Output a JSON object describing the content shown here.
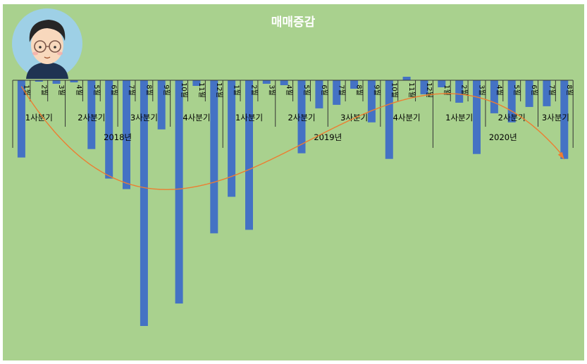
{
  "title": "매매증감",
  "colors": {
    "background": "#a9d18e",
    "bar": "#4472c4",
    "trendline": "#ed7d31",
    "axis": "#333333",
    "title": "#ffffff"
  },
  "avatar_icon": "avatar-icon",
  "chart_data": {
    "type": "bar",
    "title": "매매증감",
    "x": {
      "months": [
        "1월",
        "2월",
        "3월",
        "4월",
        "5월",
        "6월",
        "7월",
        "8월",
        "9월",
        "10월",
        "11월",
        "12월",
        "1월",
        "2월",
        "3월",
        "4월",
        "5월",
        "6월",
        "7월",
        "8월",
        "9월",
        "10월",
        "11월",
        "12월",
        "1월",
        "2월",
        "3월",
        "4월",
        "5월",
        "6월",
        "7월",
        "8월"
      ],
      "quarters": [
        {
          "label": "1사분기",
          "span": 3
        },
        {
          "label": "2사분기",
          "span": 3
        },
        {
          "label": "3사분기",
          "span": 3
        },
        {
          "label": "4사분기",
          "span": 3
        },
        {
          "label": "1사분기",
          "span": 3
        },
        {
          "label": "2사분기",
          "span": 3
        },
        {
          "label": "3사분기",
          "span": 3
        },
        {
          "label": "4사분기",
          "span": 3
        },
        {
          "label": "1사분기",
          "span": 3
        },
        {
          "label": "2사분기",
          "span": 3
        },
        {
          "label": "3사분기",
          "span": 2
        }
      ],
      "years": [
        {
          "label": "2018년",
          "span": 12
        },
        {
          "label": "2019년",
          "span": 12
        },
        {
          "label": "2020년",
          "span": 8
        }
      ]
    },
    "values": [
      -110,
      -2,
      -5,
      -3,
      -98,
      -140,
      -155,
      -350,
      -70,
      -318,
      -8,
      -218,
      -166,
      -213,
      -5,
      -7,
      -104,
      -40,
      -35,
      -12,
      -60,
      -112,
      5,
      -20,
      -10,
      -32,
      -105,
      -47,
      -60,
      -38,
      -37,
      -112
    ],
    "ylim": [
      -355,
      10
    ],
    "trendline": {
      "type": "polynomial"
    },
    "grid": false,
    "legend": "none"
  }
}
